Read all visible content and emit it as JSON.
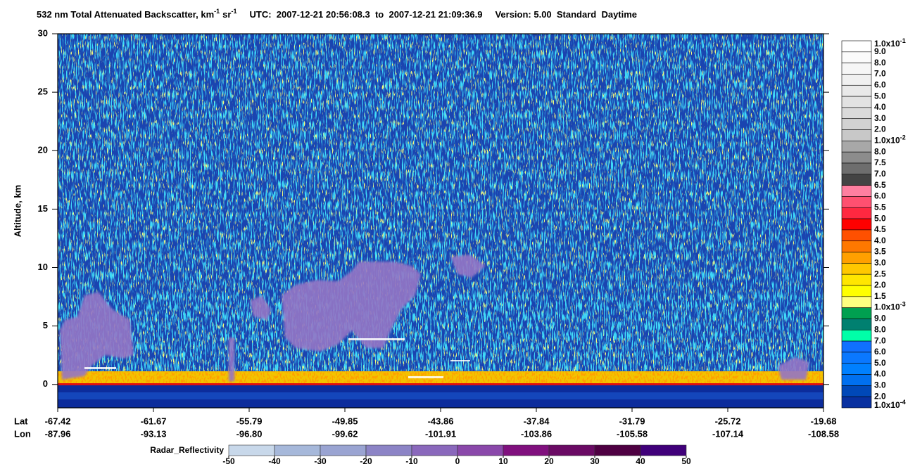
{
  "chart_data": {
    "type": "curtain",
    "title": {
      "main": "532 nm Total Attenuated Backscatter, km",
      "sup1": "-1",
      "mid": "sr",
      "sup2": "-1",
      "utc": "UTC:  2007-12-21 20:56:08.3  to  2007-12-21 21:09:36.9",
      "version": "Version: 5.00  Standard  Daytime"
    },
    "ylabel": "Altitude, km",
    "ylim": [
      -2,
      30
    ],
    "yticks": [
      0,
      5,
      10,
      15,
      20,
      25,
      30
    ],
    "lat_title": "Lat",
    "lon_title": "Lon",
    "lat_labels": [
      "-67.42",
      "-61.67",
      "-55.79",
      "-49.85",
      "-43.86",
      "-37.84",
      "-31.79",
      "-25.72",
      "-19.68"
    ],
    "lon_labels": [
      "-87.96",
      "-93.13",
      "-96.80",
      "-99.62",
      "-101.91",
      "-103.86",
      "-105.58",
      "-107.14",
      "-108.58"
    ],
    "colorbar": {
      "labels": [
        {
          "base": "1.0x10",
          "exp": "-1"
        },
        "9.0",
        "8.0",
        "7.0",
        "6.0",
        "5.0",
        "4.0",
        "3.0",
        "2.0",
        {
          "base": "1.0x10",
          "exp": "-2"
        },
        "8.0",
        "7.5",
        "7.0",
        "6.5",
        "6.0",
        "5.5",
        "5.0",
        "4.5",
        "4.0",
        "3.5",
        "3.0",
        "2.5",
        "2.0",
        "1.5",
        {
          "base": "1.0x10",
          "exp": "-3"
        },
        "9.0",
        "8.0",
        "7.0",
        "6.0",
        "5.0",
        "4.0",
        "3.0",
        "2.0",
        {
          "base": "1.0x10",
          "exp": "-4"
        }
      ],
      "colors": [
        "#ffffff",
        "#fbfbfb",
        "#f6f6f6",
        "#f0f0f0",
        "#e9e9e9",
        "#e2e2e2",
        "#dadada",
        "#d2d2d2",
        "#c8c8c8",
        "#a8a8a8",
        "#8c8c8c",
        "#6e6e6e",
        "#444444",
        "#ff7fa0",
        "#ff5070",
        "#ff2840",
        "#ff0000",
        "#ff5000",
        "#ff7800",
        "#ffa000",
        "#ffc800",
        "#ffe600",
        "#ffff00",
        "#ffff80",
        "#00a050",
        "#008070",
        "#00ffa8",
        "#1070ff",
        "#0a78ff",
        "#0080ff",
        "#0070f0",
        "#0048b8",
        "#0830a0"
      ]
    },
    "radar": {
      "label": "Radar_Reflectivity",
      "xlim": [
        -50,
        50
      ],
      "xticks": [
        -50,
        -40,
        -30,
        -20,
        -10,
        0,
        10,
        20,
        30,
        40,
        50
      ],
      "colors": [
        "#c8d8ea",
        "#a6b8da",
        "#9aa4d2",
        "#8c84c6",
        "#8a68bc",
        "#8a48aa",
        "#80107e",
        "#6a0a64",
        "#4e0042",
        "#40007a"
      ]
    }
  }
}
